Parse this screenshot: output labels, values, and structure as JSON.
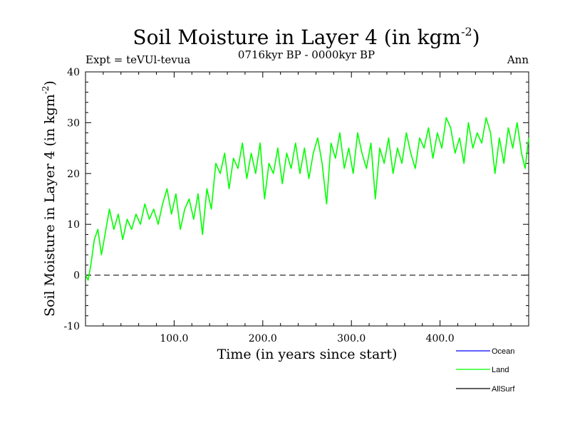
{
  "chart_data": {
    "type": "line",
    "title": "Soil Moisture in Layer 4 (in kgm",
    "title_superscript": "-2",
    "title_suffix": ")",
    "subtitle": "0716kyr BP - 0000kyr BP",
    "left_label": "Expt = teVUl-tevua",
    "right_label": "Ann",
    "xlabel": "Time (in years since start)",
    "ylabel": "Soil Moisture in Layer 4 (in kgm",
    "ylabel_superscript": "-2",
    "ylabel_suffix": ")",
    "xlim": [
      0,
      500
    ],
    "ylim": [
      -10,
      40
    ],
    "x_ticks": [
      100,
      200,
      300,
      400
    ],
    "x_tick_labels": [
      "100.0",
      "200.0",
      "300.0",
      "400.0"
    ],
    "y_ticks": [
      -10,
      0,
      10,
      20,
      30,
      40
    ],
    "y_tick_labels": [
      "-10",
      "0",
      "10",
      "20",
      "30",
      "40"
    ],
    "zero_line": 0,
    "series": [
      {
        "name": "Land",
        "color": "#00ff00",
        "x": [
          0,
          3,
          6,
          10,
          14,
          18,
          22,
          27,
          32,
          37,
          42,
          47,
          52,
          57,
          62,
          67,
          72,
          77,
          82,
          87,
          92,
          97,
          102,
          107,
          112,
          117,
          122,
          127,
          132,
          137,
          142,
          147,
          152,
          157,
          162,
          167,
          172,
          177,
          182,
          187,
          192,
          197,
          202,
          207,
          212,
          217,
          222,
          227,
          232,
          237,
          242,
          247,
          252,
          257,
          262,
          267,
          272,
          277,
          282,
          287,
          292,
          297,
          302,
          307,
          312,
          317,
          322,
          327,
          332,
          337,
          342,
          347,
          352,
          357,
          362,
          367,
          372,
          377,
          382,
          387,
          392,
          397,
          402,
          407,
          412,
          417,
          422,
          427,
          432,
          437,
          442,
          447,
          452,
          457,
          462,
          467,
          472,
          477,
          482,
          487,
          492,
          496,
          500
        ],
        "values": [
          0,
          -1,
          2,
          7,
          9,
          4,
          8,
          13,
          9,
          12,
          7,
          11,
          9,
          12,
          10,
          14,
          11,
          13,
          10,
          14,
          17,
          12,
          16,
          9,
          13,
          15,
          11,
          16,
          8,
          17,
          13,
          22,
          20,
          24,
          17,
          23,
          21,
          26,
          19,
          24,
          20,
          26,
          15,
          22,
          20,
          25,
          18,
          24,
          21,
          26,
          20,
          25,
          19,
          24,
          27,
          22,
          14,
          26,
          23,
          28,
          21,
          25,
          20,
          28,
          24,
          21,
          26,
          15,
          25,
          22,
          27,
          20,
          25,
          22,
          28,
          24,
          21,
          27,
          25,
          29,
          23,
          28,
          25,
          31,
          29,
          24,
          27,
          22,
          30,
          25,
          28,
          26,
          31,
          28,
          20,
          27,
          22,
          29,
          25,
          30,
          24,
          21,
          27
        ]
      }
    ],
    "legend": [
      {
        "label": "Ocean",
        "color": "#0000ff"
      },
      {
        "label": "Land",
        "color": "#00ff00"
      },
      {
        "label": "AllSurf",
        "color": "#000000"
      }
    ]
  }
}
